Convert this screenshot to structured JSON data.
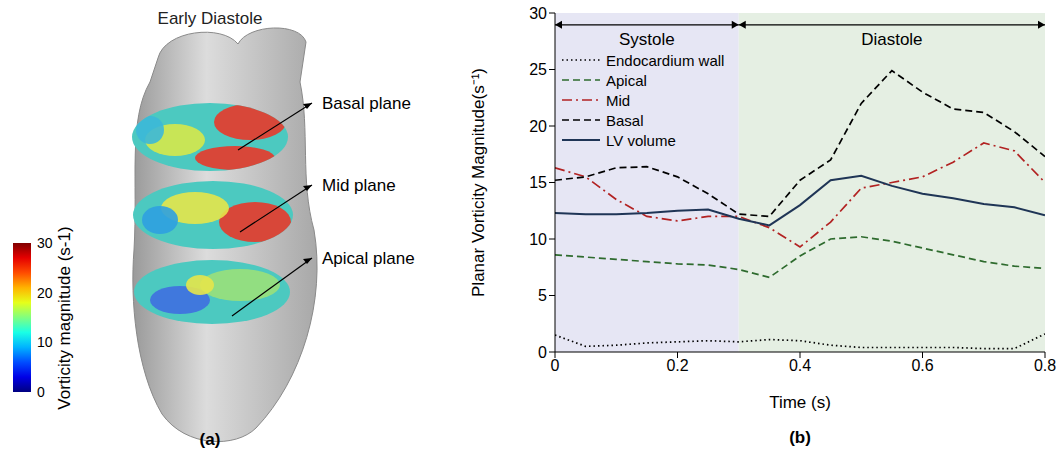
{
  "panel_labels": [
    "(a)",
    "(b)"
  ],
  "diagram": {
    "title": "Early Diastole",
    "planes": [
      "Basal plane",
      "Mid plane",
      "Apical plane"
    ],
    "colorbar": {
      "label": "Vorticity magnitude (s-1)",
      "range": [
        0,
        30
      ],
      "ticks": [
        0,
        10,
        20,
        30
      ]
    }
  },
  "chart_data": {
    "type": "line",
    "x_label": "Time (s)",
    "y_label": "Planar Vorticity Magnitude(s⁻¹)",
    "xlim": [
      0,
      0.8
    ],
    "xticks": [
      0,
      0.2,
      0.4,
      0.6,
      0.8
    ],
    "ylim": [
      0,
      30
    ],
    "yticks": [
      0,
      5,
      10,
      15,
      20,
      25,
      30
    ],
    "grid": false,
    "legend": "upper left",
    "phases": [
      {
        "label": "Systole",
        "x_range": [
          0,
          0.3
        ],
        "color": "#e6e6f4"
      },
      {
        "label": "Diastole",
        "x_range": [
          0.3,
          0.8
        ],
        "color": "#e5efe3"
      }
    ],
    "x": [
      0,
      0.05,
      0.1,
      0.15,
      0.2,
      0.25,
      0.3,
      0.35,
      0.4,
      0.45,
      0.5,
      0.55,
      0.6,
      0.65,
      0.7,
      0.75,
      0.8
    ],
    "series": [
      {
        "name": "Endocardium wall",
        "color": "#000000",
        "line_style": "dotted",
        "values": [
          1.5,
          0.5,
          0.6,
          0.8,
          0.9,
          1.0,
          0.9,
          1.1,
          1.0,
          0.6,
          0.4,
          0.4,
          0.4,
          0.4,
          0.3,
          0.3,
          1.6
        ]
      },
      {
        "name": "Apical",
        "color": "#2e6b2e",
        "line_style": "dashed",
        "values": [
          8.6,
          8.4,
          8.2,
          8.0,
          7.8,
          7.7,
          7.3,
          6.6,
          8.5,
          10.0,
          10.2,
          9.8,
          9.2,
          8.6,
          8.0,
          7.6,
          7.4
        ]
      },
      {
        "name": "Mid",
        "color": "#b22222",
        "line_style": "dashdot",
        "values": [
          16.3,
          15.5,
          13.5,
          12.0,
          11.6,
          12.0,
          12.0,
          11.0,
          9.3,
          11.5,
          14.5,
          15.0,
          15.5,
          16.8,
          18.5,
          17.8,
          15.0
        ]
      },
      {
        "name": "Basal",
        "color": "#000000",
        "line_style": "dashed",
        "values": [
          15.2,
          15.5,
          16.3,
          16.4,
          15.5,
          14.0,
          12.2,
          12.0,
          15.2,
          17.0,
          22.0,
          24.9,
          23.0,
          21.5,
          21.2,
          19.5,
          17.3
        ]
      },
      {
        "name": "LV volume",
        "color": "#1f3556",
        "line_style": "solid",
        "values": [
          12.3,
          12.2,
          12.2,
          12.3,
          12.5,
          12.6,
          11.8,
          11.2,
          13.0,
          15.2,
          15.6,
          14.7,
          14.0,
          13.6,
          13.1,
          12.8,
          12.1
        ]
      }
    ]
  }
}
